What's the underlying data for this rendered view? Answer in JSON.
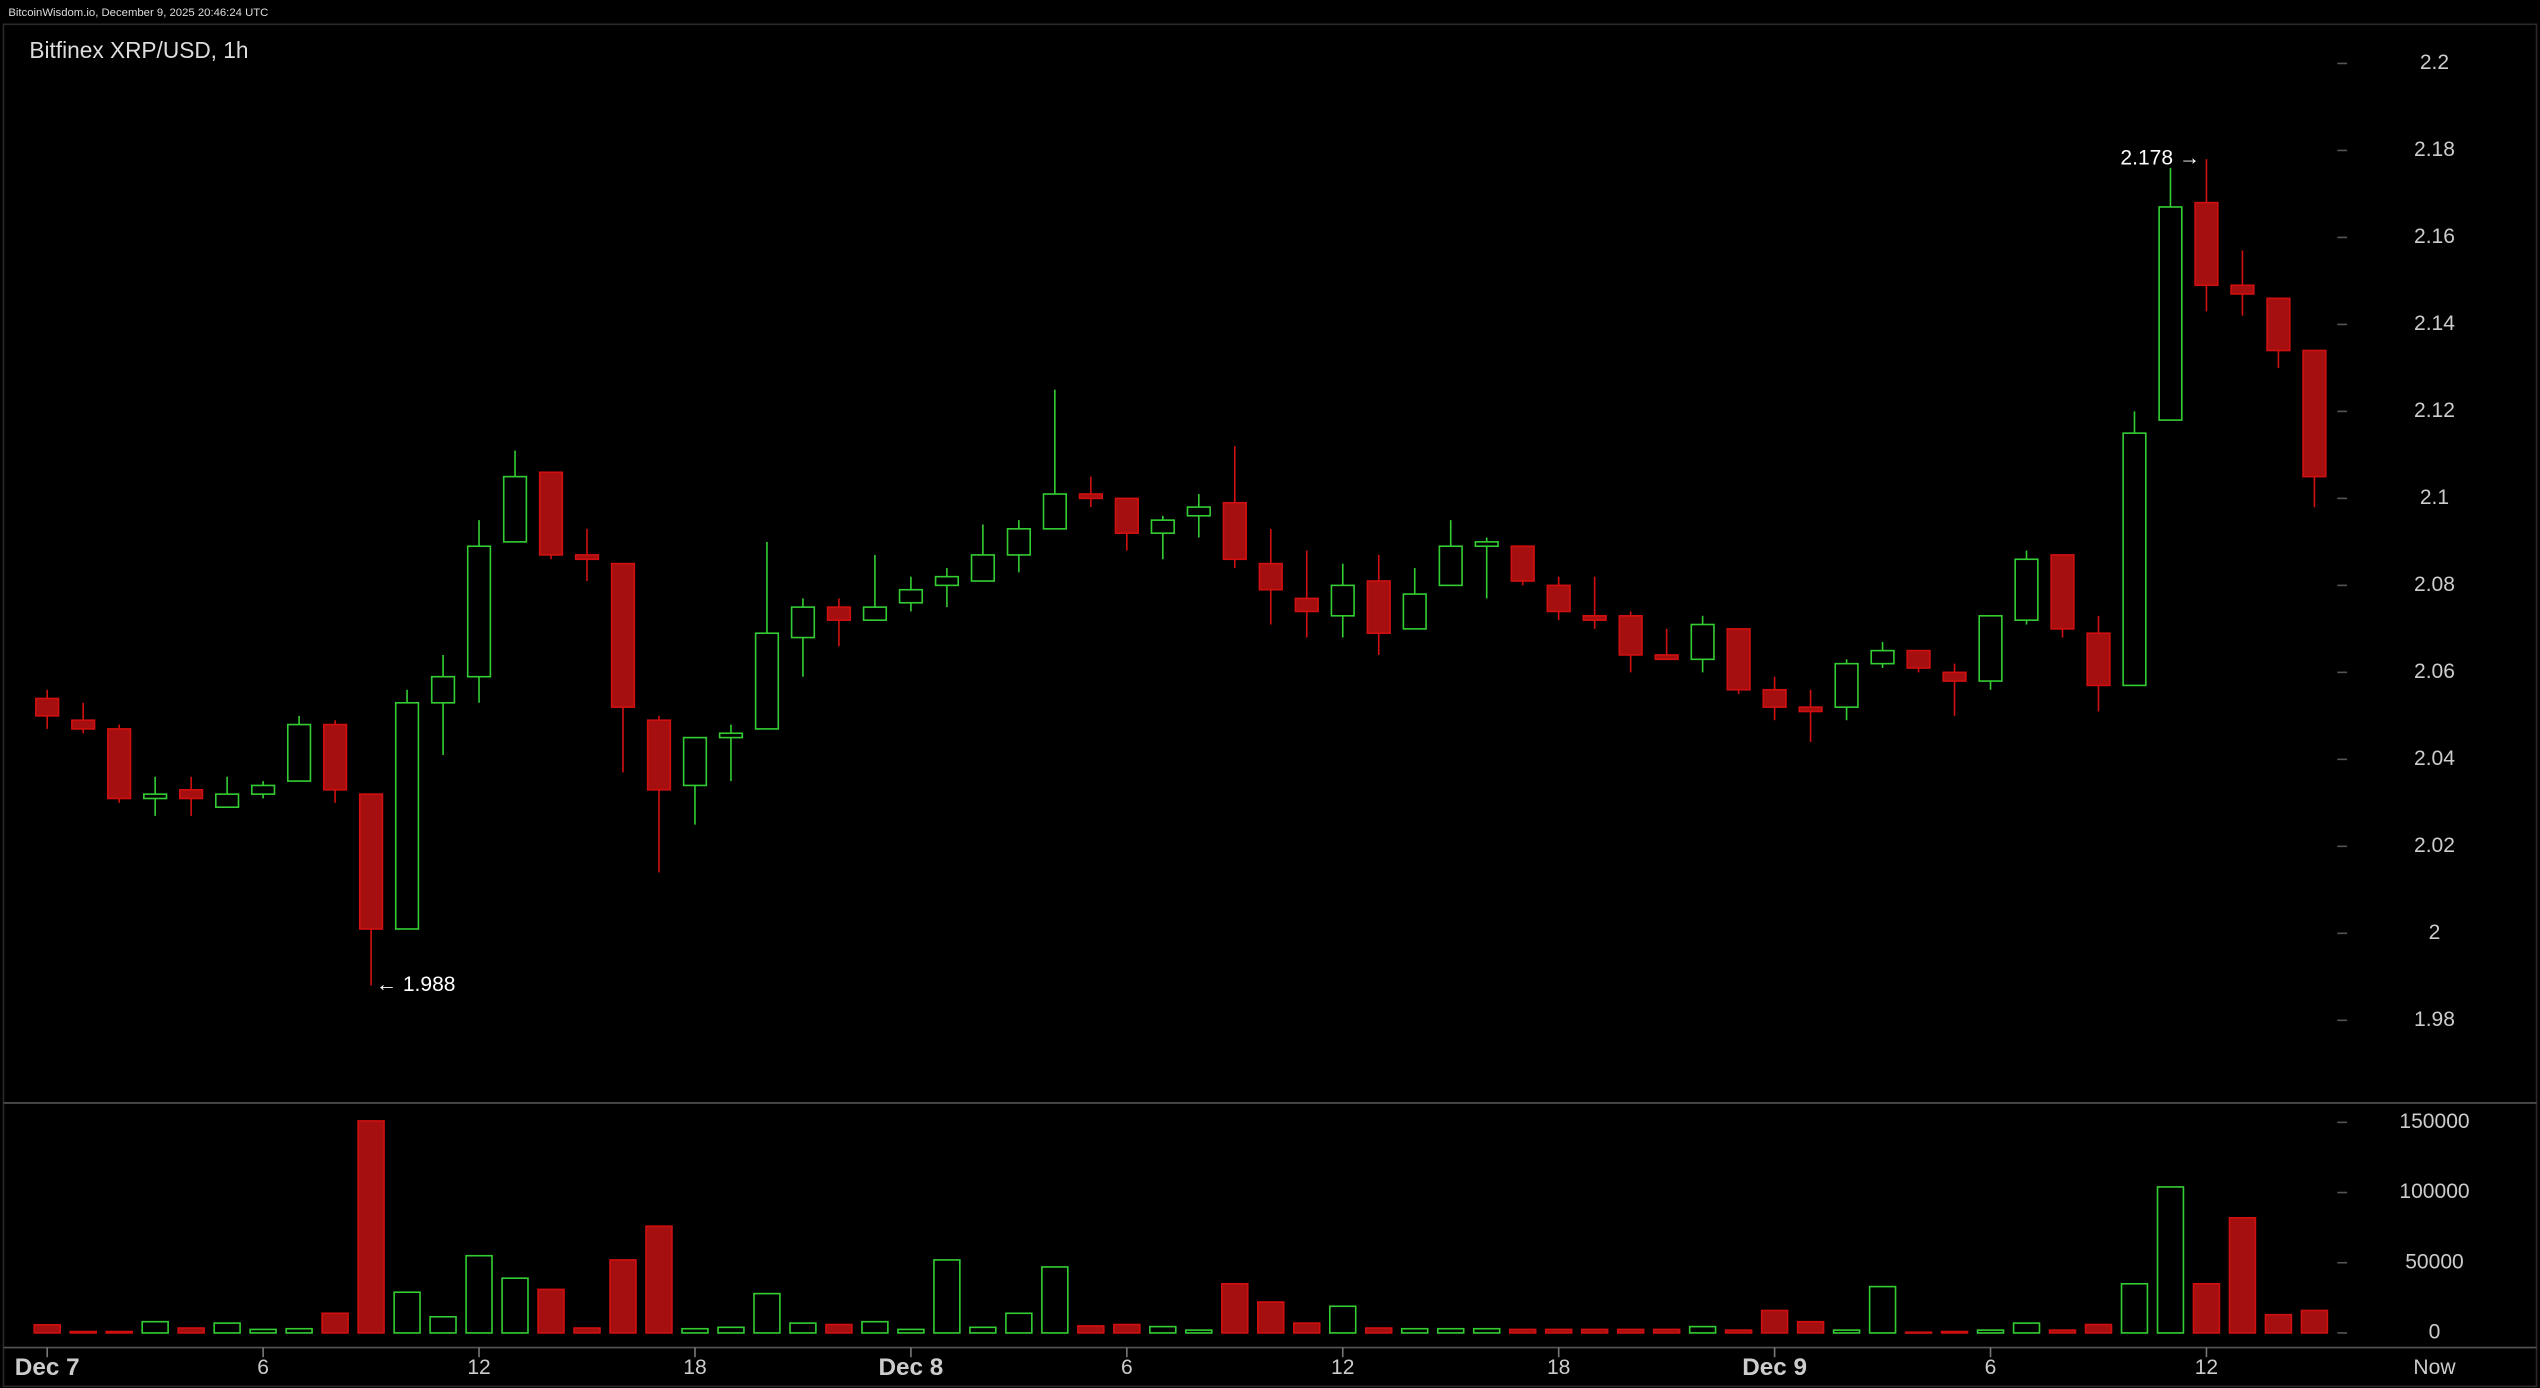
{
  "header": "BitcoinWisdom.io, December 9, 2025 20:46:24 UTC",
  "chart_data": {
    "type": "candlestick",
    "title": "Bitfinex XRP/USD, 1h",
    "categories": [
      "Dec 7",
      null,
      null,
      null,
      null,
      null,
      "6",
      null,
      null,
      null,
      null,
      null,
      "12",
      null,
      null,
      null,
      null,
      null,
      "18",
      null,
      null,
      null,
      null,
      null,
      "Dec 8",
      null,
      null,
      null,
      null,
      null,
      "6",
      null,
      null,
      null,
      null,
      null,
      "12",
      null,
      null,
      null,
      null,
      null,
      "18",
      null,
      null,
      null,
      null,
      null,
      "Dec 9",
      null,
      null,
      null,
      null,
      null,
      "6",
      null,
      null,
      null,
      null,
      null,
      "12",
      null,
      null,
      null
    ],
    "now_label": "Now",
    "open": [
      2.054,
      2.049,
      2.047,
      2.031,
      2.033,
      2.029,
      2.032,
      2.035,
      2.048,
      2.032,
      2.001,
      2.053,
      2.059,
      2.09,
      2.106,
      2.087,
      2.085,
      2.049,
      2.034,
      2.045,
      2.047,
      2.068,
      2.075,
      2.072,
      2.076,
      2.08,
      2.081,
      2.087,
      2.093,
      2.101,
      2.1,
      2.092,
      2.096,
      2.099,
      2.085,
      2.077,
      2.073,
      2.081,
      2.07,
      2.08,
      2.089,
      2.089,
      2.08,
      2.073,
      2.073,
      2.064,
      2.063,
      2.07,
      2.056,
      2.052,
      2.052,
      2.062,
      2.065,
      2.06,
      2.058,
      2.072,
      2.087,
      2.069,
      2.057,
      2.118,
      2.168,
      2.149,
      2.146,
      2.134
    ],
    "high": [
      2.056,
      2.053,
      2.048,
      2.036,
      2.036,
      2.036,
      2.035,
      2.05,
      2.049,
      2.032,
      2.056,
      2.064,
      2.095,
      2.111,
      2.106,
      2.093,
      2.085,
      2.05,
      2.045,
      2.048,
      2.09,
      2.077,
      2.077,
      2.087,
      2.082,
      2.084,
      2.094,
      2.095,
      2.125,
      2.105,
      2.1,
      2.096,
      2.101,
      2.112,
      2.093,
      2.088,
      2.085,
      2.087,
      2.084,
      2.095,
      2.091,
      2.089,
      2.082,
      2.082,
      2.074,
      2.07,
      2.073,
      2.07,
      2.059,
      2.056,
      2.063,
      2.067,
      2.065,
      2.062,
      2.073,
      2.088,
      2.087,
      2.073,
      2.12,
      2.176,
      2.178,
      2.157,
      2.146,
      2.134
    ],
    "low": [
      2.047,
      2.046,
      2.03,
      2.027,
      2.027,
      2.029,
      2.031,
      2.035,
      2.03,
      1.988,
      2.001,
      2.041,
      2.053,
      2.09,
      2.086,
      2.081,
      2.037,
      2.014,
      2.025,
      2.035,
      2.047,
      2.059,
      2.066,
      2.072,
      2.074,
      2.075,
      2.081,
      2.083,
      2.093,
      2.098,
      2.088,
      2.086,
      2.091,
      2.084,
      2.071,
      2.068,
      2.068,
      2.064,
      2.07,
      2.08,
      2.077,
      2.08,
      2.072,
      2.07,
      2.06,
      2.063,
      2.06,
      2.055,
      2.049,
      2.044,
      2.049,
      2.061,
      2.06,
      2.05,
      2.056,
      2.071,
      2.068,
      2.051,
      2.057,
      2.118,
      2.143,
      2.142,
      2.13,
      2.098
    ],
    "close": [
      2.05,
      2.047,
      2.031,
      2.032,
      2.031,
      2.032,
      2.034,
      2.048,
      2.033,
      2.001,
      2.053,
      2.059,
      2.089,
      2.105,
      2.087,
      2.086,
      2.052,
      2.033,
      2.045,
      2.046,
      2.069,
      2.075,
      2.072,
      2.075,
      2.079,
      2.082,
      2.087,
      2.093,
      2.101,
      2.1,
      2.092,
      2.095,
      2.098,
      2.086,
      2.079,
      2.074,
      2.08,
      2.069,
      2.078,
      2.089,
      2.09,
      2.081,
      2.074,
      2.072,
      2.064,
      2.063,
      2.071,
      2.056,
      2.052,
      2.051,
      2.062,
      2.065,
      2.061,
      2.058,
      2.073,
      2.086,
      2.07,
      2.057,
      2.115,
      2.167,
      2.149,
      2.147,
      2.134,
      2.105
    ],
    "volume": [
      5800,
      1000,
      1000,
      8000,
      3500,
      7000,
      2500,
      3000,
      14000,
      151000,
      29000,
      11500,
      55000,
      39000,
      31000,
      3500,
      52000,
      76000,
      3000,
      4000,
      28000,
      7000,
      6000,
      8000,
      2500,
      52000,
      4000,
      14000,
      47000,
      5000,
      6000,
      4500,
      2000,
      35000,
      22000,
      7000,
      19000,
      3500,
      3000,
      3000,
      3000,
      2500,
      2500,
      2500,
      2500,
      2500,
      4500,
      2000,
      16000,
      8000,
      2000,
      33000,
      500,
      1000,
      2000,
      7000,
      2000,
      6000,
      35000,
      104000,
      35000,
      82000,
      13000,
      16000
    ],
    "up_color": "#33cc33",
    "down_color": "#a50f0f",
    "ylim": [
      1.961,
      2.209
    ],
    "yticks": [
      1.98,
      2,
      2.02,
      2.04,
      2.06,
      2.08,
      2.1,
      2.12,
      2.14,
      2.16,
      2.18,
      2.2
    ],
    "volume_ylim": [
      0,
      161500
    ],
    "volume_yticks": [
      0,
      50000,
      100000,
      150000
    ],
    "annotations": [
      {
        "text": "2.178 →"
      },
      {
        "text": "← 1.988"
      }
    ]
  }
}
